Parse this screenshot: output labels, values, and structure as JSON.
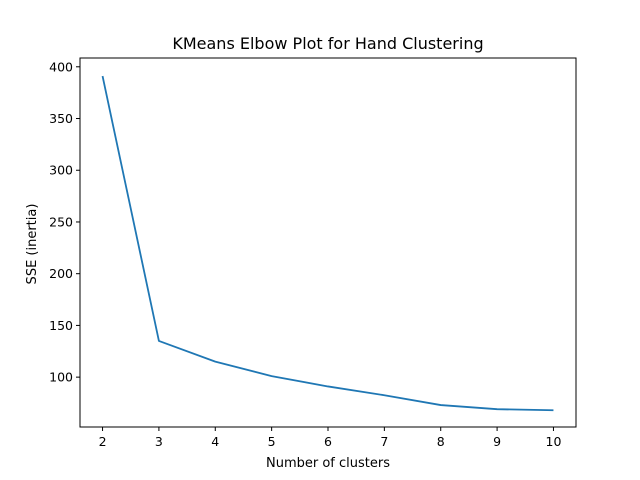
{
  "chart_data": {
    "type": "line",
    "title": "KMeans Elbow Plot for Hand Clustering",
    "xlabel": "Number of clusters",
    "ylabel": "SSE (inertia)",
    "x": [
      2,
      3,
      4,
      5,
      6,
      7,
      8,
      9,
      10
    ],
    "series": [
      {
        "values": [
          391,
          135,
          115,
          101,
          91,
          82.5,
          73,
          69,
          68
        ],
        "color": "#1f77b4"
      }
    ],
    "xlim": [
      1.6,
      10.4
    ],
    "ylim": [
      51.8,
      408.5
    ],
    "xticks": [
      2,
      3,
      4,
      5,
      6,
      7,
      8,
      9,
      10
    ],
    "yticks": [
      100,
      150,
      200,
      250,
      300,
      350,
      400
    ],
    "grid": false,
    "legend": false
  }
}
